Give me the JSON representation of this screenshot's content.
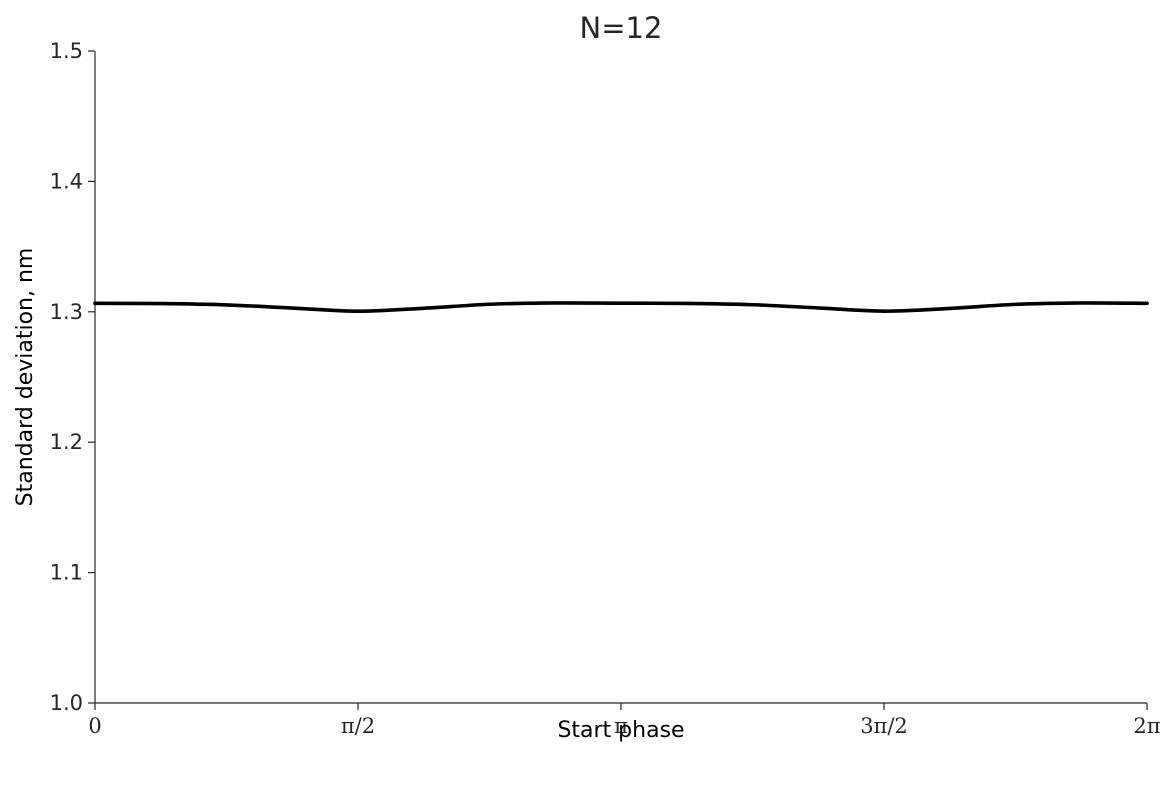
{
  "chart_data": {
    "type": "line",
    "title": "N=12",
    "xlabel": "Start phase",
    "ylabel": "Standard deviation, nm",
    "xlim": [
      0,
      6.283185307
    ],
    "ylim": [
      1.0,
      1.5
    ],
    "grid": false,
    "legend": "none",
    "xticks": [
      {
        "value": 0,
        "label": "0"
      },
      {
        "value": 1.570796327,
        "label": "π/2"
      },
      {
        "value": 3.141592654,
        "label": "π"
      },
      {
        "value": 4.71238898,
        "label": "3π/2"
      },
      {
        "value": 6.283185307,
        "label": "2π"
      }
    ],
    "yticks": [
      {
        "value": 1.0,
        "label": "1.0"
      },
      {
        "value": 1.1,
        "label": "1.1"
      },
      {
        "value": 1.2,
        "label": "1.2"
      },
      {
        "value": 1.3,
        "label": "1.3"
      },
      {
        "value": 1.4,
        "label": "1.4"
      },
      {
        "value": 1.5,
        "label": "1.5"
      }
    ],
    "series": [
      {
        "color": "#000000",
        "x": [
          0,
          0.3927,
          0.7854,
          1.1781,
          1.5708,
          1.9635,
          2.3562,
          2.7489,
          3.1416,
          3.5343,
          3.927,
          4.3197,
          4.7124,
          5.1051,
          5.4978,
          5.8905,
          6.2832
        ],
        "y": [
          1.3065,
          1.3063,
          1.3053,
          1.3029,
          1.3005,
          1.3027,
          1.3058,
          1.3068,
          1.3066,
          1.3064,
          1.3054,
          1.303,
          1.3005,
          1.3026,
          1.3057,
          1.3068,
          1.3065
        ]
      }
    ]
  }
}
